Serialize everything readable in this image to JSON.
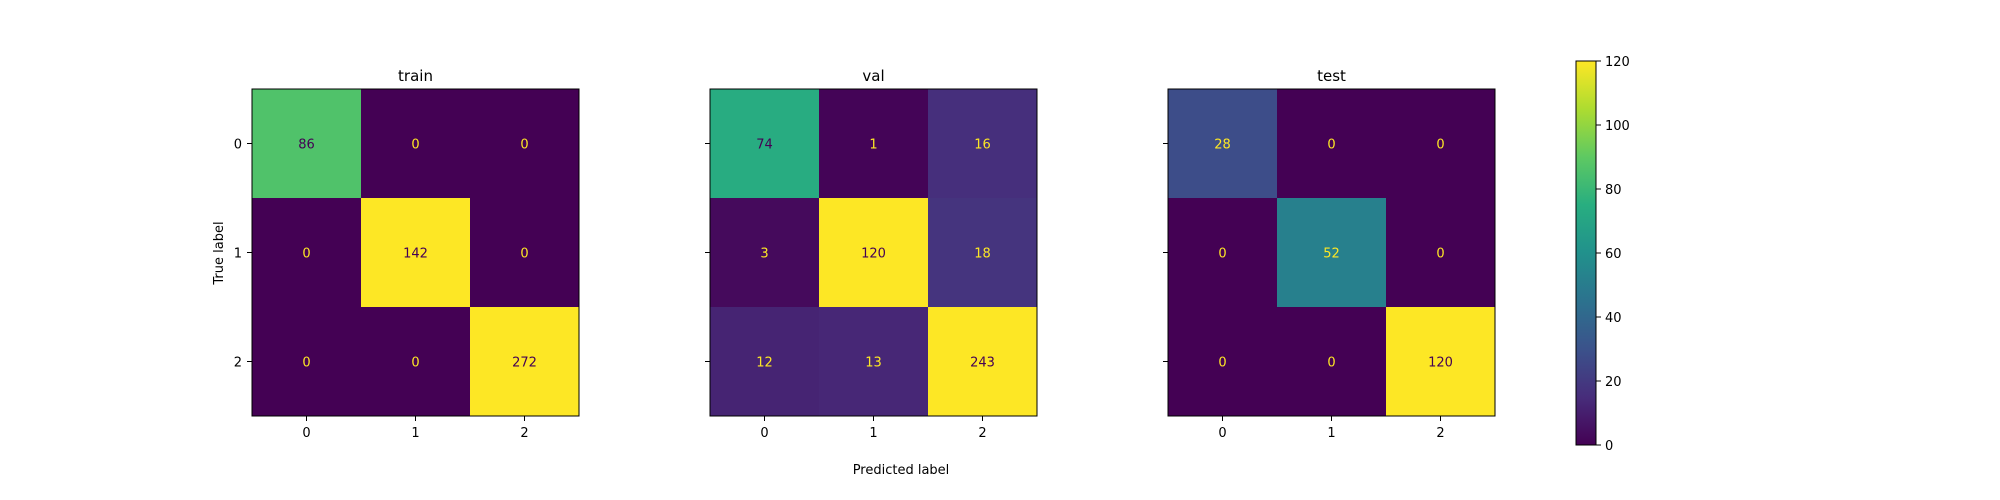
{
  "chart_data": {
    "type": "heatmap",
    "xlabel": "Predicted label",
    "ylabel": "True label",
    "x_tick_labels": [
      "0",
      "1",
      "2"
    ],
    "y_tick_labels": [
      "0",
      "1",
      "2"
    ],
    "colormap": "viridis",
    "colorbar": {
      "range": [
        0,
        120
      ],
      "ticks": [
        "0",
        "20",
        "40",
        "60",
        "80",
        "100",
        "120"
      ]
    },
    "panels": [
      {
        "title": "train",
        "matrix": [
          [
            86,
            0,
            0
          ],
          [
            0,
            142,
            0
          ],
          [
            0,
            0,
            272
          ]
        ]
      },
      {
        "title": "val",
        "matrix": [
          [
            74,
            1,
            16
          ],
          [
            3,
            120,
            18
          ],
          [
            12,
            13,
            243
          ]
        ]
      },
      {
        "title": "test",
        "matrix": [
          [
            28,
            0,
            0
          ],
          [
            0,
            52,
            0
          ],
          [
            0,
            0,
            120
          ]
        ]
      }
    ]
  }
}
